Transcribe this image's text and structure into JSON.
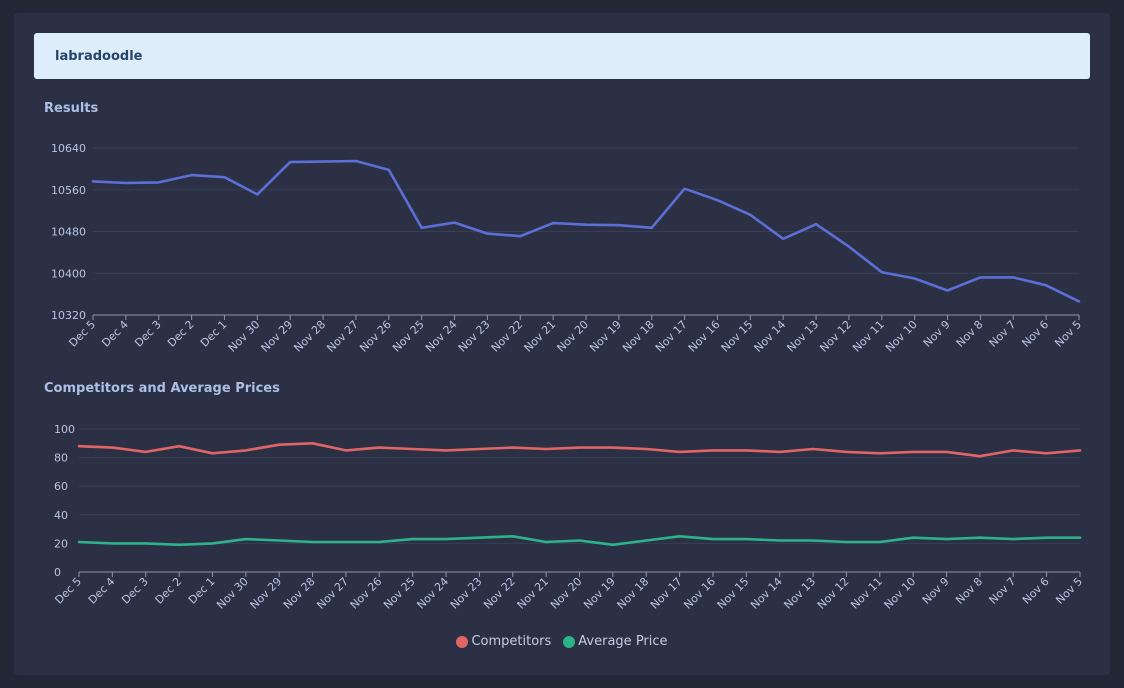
{
  "header": {
    "keyword": "labradoodle"
  },
  "results": {
    "title": "Results"
  },
  "competitors": {
    "title": "Competitors and Average Prices"
  },
  "colors": {
    "results_line": "#5b6fd6",
    "competitors_line": "#e06666",
    "average_price_line": "#2db38a",
    "tick_text": "#b8c5e4",
    "grid": "#383e55",
    "axis": "#8d97b3"
  },
  "chart_data": [
    {
      "type": "line",
      "title": "Results",
      "categories": [
        "Dec 5",
        "Dec 4",
        "Dec 3",
        "Dec 2",
        "Dec 1",
        "Nov 30",
        "Nov 29",
        "Nov 28",
        "Nov 27",
        "Nov 26",
        "Nov 25",
        "Nov 24",
        "Nov 23",
        "Nov 22",
        "Nov 21",
        "Nov 20",
        "Nov 19",
        "Nov 18",
        "Nov 17",
        "Nov 16",
        "Nov 15",
        "Nov 14",
        "Nov 13",
        "Nov 12",
        "Nov 11",
        "Nov 10",
        "Nov 9",
        "Nov 8",
        "Nov 7",
        "Nov 6",
        "Nov 5"
      ],
      "series": [
        {
          "values": [
            10576,
            10573,
            10574,
            10588,
            10584,
            10551,
            10613,
            10614,
            10615,
            10598,
            10487,
            10497,
            10476,
            10471,
            10496,
            10493,
            10492,
            10487,
            10562,
            10540,
            10512,
            10466,
            10494,
            10451,
            10402,
            10390,
            10367,
            10392,
            10392,
            10377,
            10346
          ]
        }
      ],
      "ylim": [
        10320,
        10640
      ],
      "yticks": [
        10320,
        10400,
        10480,
        10560,
        10640
      ],
      "grid": true,
      "legend": "none"
    },
    {
      "type": "line",
      "title": "Competitors and Average Prices",
      "categories": [
        "Dec 5",
        "Dec 4",
        "Dec 3",
        "Dec 2",
        "Dec 1",
        "Nov 30",
        "Nov 29",
        "Nov 28",
        "Nov 27",
        "Nov 26",
        "Nov 25",
        "Nov 24",
        "Nov 23",
        "Nov 22",
        "Nov 21",
        "Nov 20",
        "Nov 19",
        "Nov 18",
        "Nov 17",
        "Nov 16",
        "Nov 15",
        "Nov 14",
        "Nov 13",
        "Nov 12",
        "Nov 11",
        "Nov 10",
        "Nov 9",
        "Nov 8",
        "Nov 7",
        "Nov 6",
        "Nov 5"
      ],
      "series": [
        {
          "name": "Competitors",
          "values": [
            88,
            87,
            84,
            88,
            83,
            85,
            89,
            90,
            85,
            87,
            86,
            85,
            86,
            87,
            86,
            87,
            87,
            86,
            84,
            85,
            85,
            84,
            86,
            84,
            83,
            84,
            84,
            81,
            85,
            83,
            85
          ]
        },
        {
          "name": "Average Price",
          "values": [
            21,
            20,
            20,
            19,
            20,
            23,
            22,
            21,
            21,
            21,
            23,
            23,
            24,
            25,
            21,
            22,
            19,
            22,
            25,
            23,
            23,
            22,
            22,
            21,
            21,
            24,
            23,
            24,
            23,
            24,
            24
          ]
        }
      ],
      "ylim": [
        0,
        100
      ],
      "yticks": [
        0,
        20,
        40,
        60,
        80,
        100
      ],
      "grid": true,
      "legend": "bottom-center"
    }
  ]
}
